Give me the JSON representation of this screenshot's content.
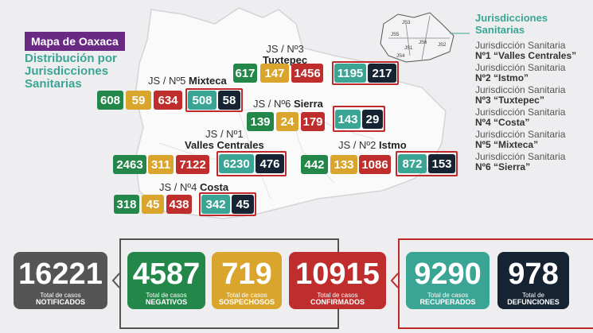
{
  "header": {
    "title": "Mapa de Oaxaca",
    "subtitle": "Distribución por Jurisdicciones Sanitarias"
  },
  "legend": {
    "title": "Jurisdicciones Sanitarias",
    "items": [
      {
        "prefix": "Jurisdicción Sanitaria",
        "name": "Nº1 “Valles Centrales”"
      },
      {
        "prefix": "Jurisdicción Sanitaria",
        "name": "Nº2 “Istmo”"
      },
      {
        "prefix": "Jurisdicción Sanitaria",
        "name": "Nº3 “Tuxtepec”"
      },
      {
        "prefix": "Jurisdicción Sanitaria",
        "name": "Nº4 “Costa”"
      },
      {
        "prefix": "Jurisdicción Sanitaria",
        "name": "Nº5 “Mixteca”"
      },
      {
        "prefix": "Jurisdicción Sanitaria",
        "name": "Nº6 “Sierra”"
      }
    ],
    "mini_map_labels": [
      "JS3",
      "JS6",
      "JS5",
      "JS1",
      "JS2",
      "JS4"
    ]
  },
  "colors": {
    "negativos": "#23874a",
    "sospechosos": "#d9a52d",
    "confirmados": "#bf2d2d",
    "recuperados": "#3aa594",
    "defunciones": "#152333",
    "notificados": "#555555",
    "title_badge": "#6a2a83"
  },
  "jurisdictions": {
    "tuxtepec": {
      "label": "JS / Nº3",
      "name": "Tuxtepec",
      "values": [
        "617",
        "147",
        "1456",
        "1195",
        "217"
      ]
    },
    "mixteca": {
      "label": "JS / Nº5",
      "name": "Mixteca",
      "values": [
        "608",
        "59",
        "634",
        "508",
        "58"
      ]
    },
    "sierra": {
      "label": "JS / Nº6",
      "name": "Sierra",
      "values": [
        "139",
        "24",
        "179",
        "143",
        "29"
      ]
    },
    "valles": {
      "label": "JS / Nº1",
      "name": "Valles Centrales",
      "values": [
        "2463",
        "311",
        "7122",
        "6230",
        "476"
      ]
    },
    "istmo": {
      "label": "JS / Nº2",
      "name": "Istmo",
      "values": [
        "442",
        "133",
        "1086",
        "872",
        "153"
      ]
    },
    "costa": {
      "label": "JS / Nº4",
      "name": "Costa",
      "values": [
        "318",
        "45",
        "438",
        "342",
        "45"
      ]
    }
  },
  "totals": {
    "notificados": {
      "value": "16221",
      "cap1": "Total de casos",
      "cap2": "NOTIFICADOS"
    },
    "negativos": {
      "value": "4587",
      "cap1": "Total de casos",
      "cap2": "NEGATIVOS"
    },
    "sospechosos": {
      "value": "719",
      "cap1": "Total de casos",
      "cap2": "SOSPECHOSOS"
    },
    "confirmados": {
      "value": "10915",
      "cap1": "Total de casos",
      "cap2": "CONFIRMADOS"
    },
    "recuperados": {
      "value": "9290",
      "cap1": "Total de casos",
      "cap2": "RECUPERADOS"
    },
    "defunciones": {
      "value": "978",
      "cap1": "Total de",
      "cap2": "DEFUNCIONES"
    }
  }
}
